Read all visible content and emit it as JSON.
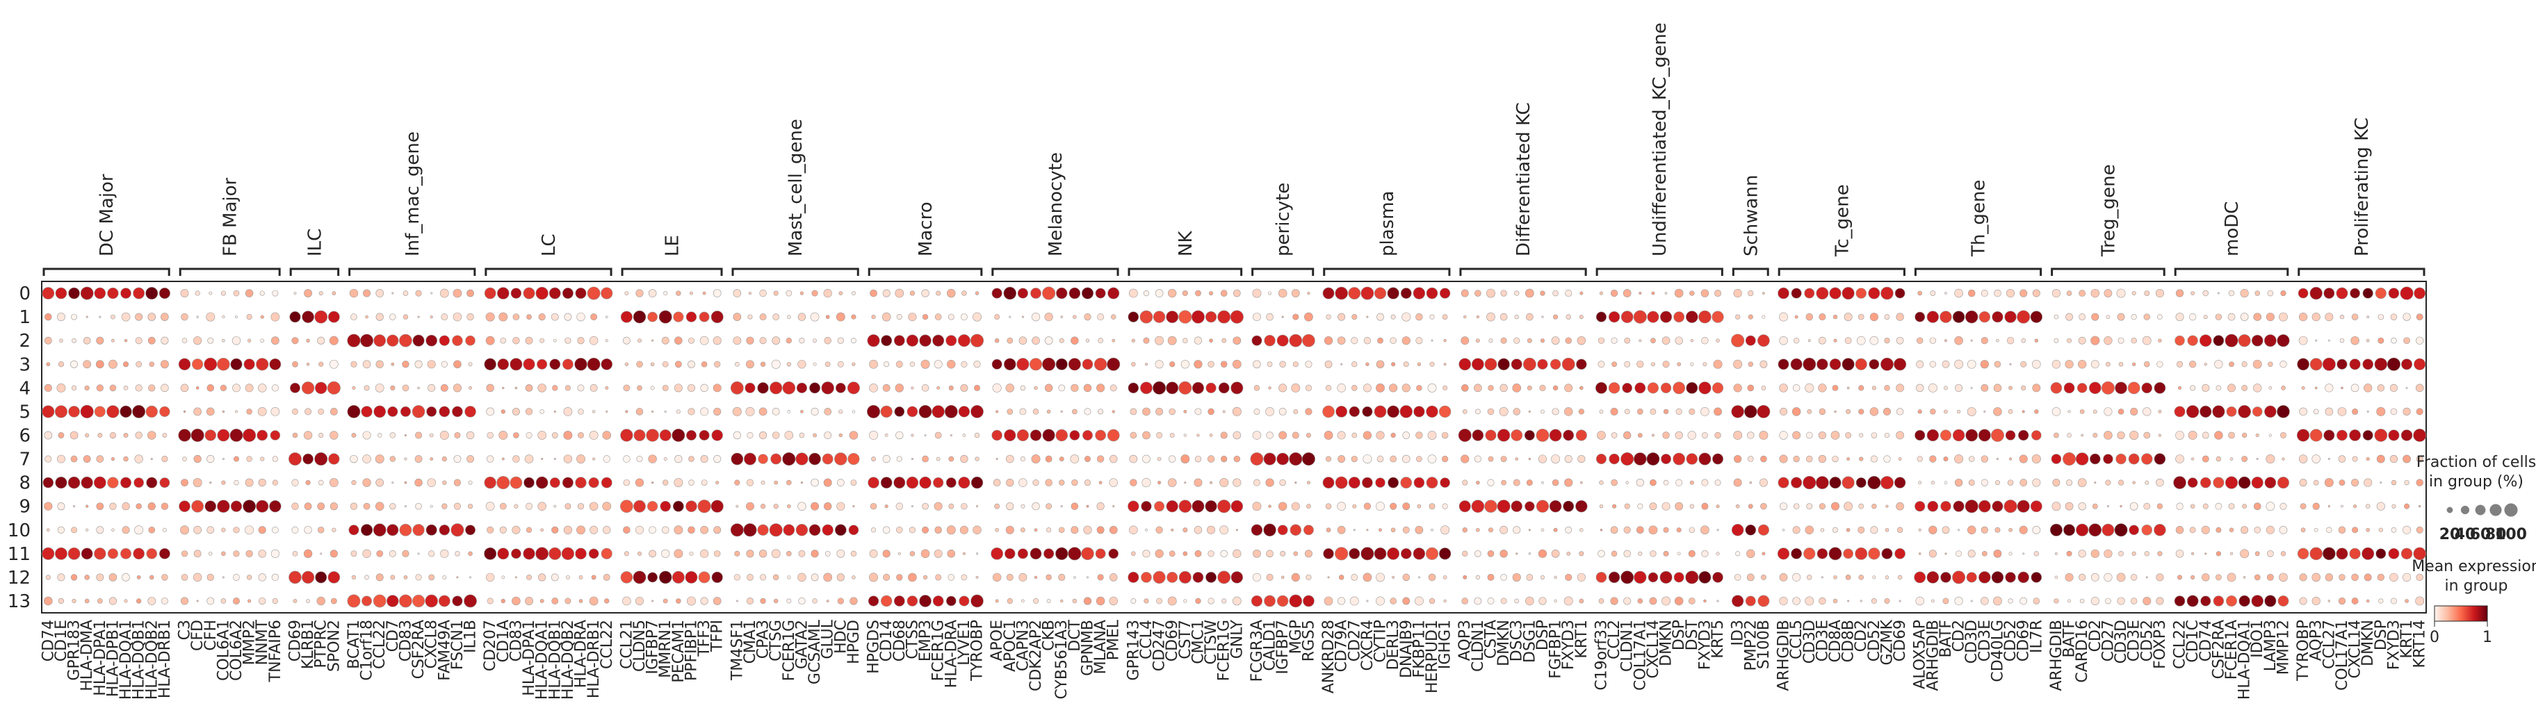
{
  "chart_data": {
    "type": "dotplot",
    "rows": [
      "0",
      "1",
      "2",
      "3",
      "4",
      "5",
      "6",
      "7",
      "8",
      "9",
      "10",
      "11",
      "12",
      "13"
    ],
    "groups": [
      {
        "name": "DC Major",
        "genes": [
          "CD74",
          "CD1E",
          "GPR183",
          "HLA-DMA",
          "HLA-DPA1",
          "HLA-DPB1",
          "HLA-DQA1",
          "HLA-DQB1",
          "HLA-DQB2",
          "HLA-DRB1"
        ]
      },
      {
        "name": "FB Major",
        "genes": [
          "C3",
          "CFD",
          "CFH",
          "COL6A1",
          "COL6A2",
          "MMP2",
          "NNMT",
          "TNFAIP6"
        ]
      },
      {
        "name": "ILC",
        "genes": [
          "CD69",
          "KLRB1",
          "PTPRC",
          "SPON2"
        ]
      },
      {
        "name": "Inf_mac_gene",
        "genes": [
          "BCAT1",
          "C1orf18",
          "CCL22",
          "CD7",
          "CD83",
          "CSF2RA",
          "CXCL8",
          "FAM49A",
          "FSCN1",
          "IL1B"
        ]
      },
      {
        "name": "LC",
        "genes": [
          "CD207",
          "CD1A",
          "CD83",
          "HLA-DPA1",
          "HLA-DQA1",
          "HLA-DQB1",
          "HLA-DQB2",
          "HLA-DRA",
          "HLA-DRB1",
          "CCL22"
        ]
      },
      {
        "name": "LE",
        "genes": [
          "CCL21",
          "CLDN5",
          "IGFBP7",
          "MMRN1",
          "PECAM1",
          "PPFIBP1",
          "TFF3",
          "TFPI"
        ]
      },
      {
        "name": "Mast_cell_gene",
        "genes": [
          "TM4SF1",
          "CMA1",
          "CPA3",
          "CTSG",
          "FCER1G",
          "GATA2",
          "GCSAML",
          "GLUL",
          "HDC",
          "HPGD"
        ]
      },
      {
        "name": "Macro",
        "genes": [
          "HPGDS",
          "CD14",
          "CD68",
          "CTSS",
          "EMP3",
          "FCER1G",
          "HLA-DRA",
          "LYVE1",
          "TYROBP"
        ]
      },
      {
        "name": "Melanocyte",
        "genes": [
          "APOE",
          "APOC1",
          "CAPN3",
          "CDK2AP2",
          "CKB",
          "CYB561A3",
          "DCT",
          "GPNMB",
          "MLANA",
          "PMEL"
        ]
      },
      {
        "name": "NK",
        "genes": [
          "GPR143",
          "CCL4",
          "CD247",
          "CD69",
          "CST7",
          "CMC1",
          "CTSW",
          "FCER1G",
          "GNLY"
        ]
      },
      {
        "name": "pericyte",
        "genes": [
          "FCGR3A",
          "CALD1",
          "IGFBP7",
          "MGP",
          "RGS5"
        ]
      },
      {
        "name": "plasma",
        "genes": [
          "ANKRD28",
          "CD79A",
          "CD27",
          "CXCR4",
          "CYTIP",
          "DERL3",
          "DNAJB9",
          "FKBP11",
          "HERPUD1",
          "IGHG1"
        ]
      },
      {
        "name": "Differentiated KC",
        "genes": [
          "AQP3",
          "CLDN1",
          "CSTA",
          "DMKN",
          "DSC3",
          "DSG1",
          "DSP",
          "FGFBP1",
          "FXYD3",
          "KRT1"
        ]
      },
      {
        "name": "Undifferentiated_KC_gene",
        "genes": [
          "C19orf33",
          "CCL2",
          "CLDN1",
          "COL17A1",
          "CXCL14",
          "DMKN",
          "DSP",
          "DST",
          "FXYD3",
          "KRT5"
        ]
      },
      {
        "name": "Schwann",
        "genes": [
          "ID3",
          "PMP22",
          "S100B"
        ]
      },
      {
        "name": "Tc_gene",
        "genes": [
          "ARHGDIB",
          "CCL5",
          "CD3D",
          "CD3E",
          "CD8A",
          "CD8B",
          "CD2",
          "CD52",
          "GZMK",
          "CD69"
        ]
      },
      {
        "name": "Th_gene",
        "genes": [
          "ALOX5AP",
          "ARHGDIB",
          "BATF",
          "CD2",
          "CD3D",
          "CD3E",
          "CD40LG",
          "CD52",
          "CD69",
          "IL7R"
        ]
      },
      {
        "name": "Treg_gene",
        "genes": [
          "ARHGDIB",
          "BATF",
          "CARD16",
          "CD2",
          "CD27",
          "CD3D",
          "CD3E",
          "CD52",
          "FOXP3"
        ]
      },
      {
        "name": "moDC",
        "genes": [
          "CCL22",
          "CD1C",
          "CD74",
          "CSF2RA",
          "FCER1A",
          "HLA-DQA1",
          "IDO1",
          "LAMP3",
          "MMP12"
        ]
      },
      {
        "name": "Proliferating KC",
        "genes": [
          "TYROBP",
          "AQP3",
          "CCL27",
          "COL17A1",
          "CXCL14",
          "DMKN",
          "DSP",
          "FXYD3",
          "KRT1",
          "KRT14"
        ]
      }
    ],
    "legend": {
      "fraction_title": "Fraction of cells\nin group (%)",
      "fraction_ticks": [
        "20",
        "40",
        "60",
        "80",
        "100"
      ],
      "expression_title": "Mean expression\nin group",
      "expression_ticks": [
        "0",
        "1"
      ]
    },
    "colormap": [
      "#fff5f0",
      "#fcbba1",
      "#fb6a4a",
      "#cb181d",
      "#67000d"
    ]
  }
}
